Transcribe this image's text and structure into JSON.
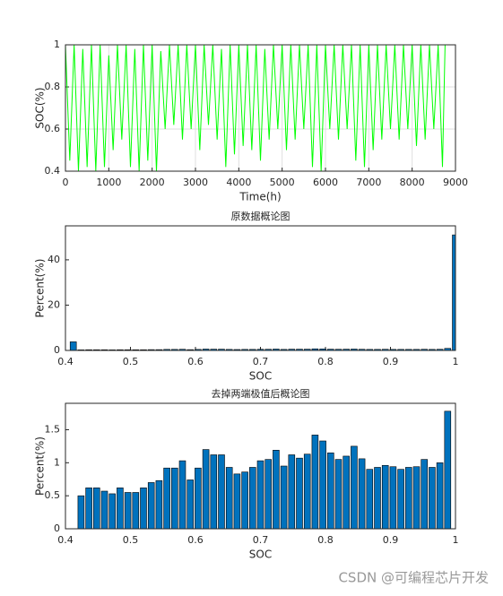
{
  "chart_data": [
    {
      "type": "line",
      "xlabel": "Time(h)",
      "ylabel": "SOC(%)",
      "x": [
        0,
        100,
        200,
        300,
        400,
        500,
        600,
        700,
        800,
        900,
        1000,
        1100,
        1200,
        1300,
        1400,
        1500,
        1600,
        1700,
        1800,
        1900,
        2000,
        2100,
        2200,
        2300,
        2400,
        2500,
        2600,
        2700,
        2800,
        2900,
        3000,
        3100,
        3200,
        3300,
        3400,
        3500,
        3600,
        3700,
        3800,
        3900,
        4000,
        4100,
        4200,
        4300,
        4400,
        4500,
        4600,
        4700,
        4800,
        4900,
        5000,
        5100,
        5200,
        5300,
        5400,
        5500,
        5600,
        5700,
        5800,
        5900,
        6000,
        6100,
        6200,
        6300,
        6400,
        6500,
        6600,
        6700,
        6800,
        6900,
        7000,
        7100,
        7200,
        7300,
        7400,
        7500,
        7600,
        7700,
        7800,
        7900,
        8000,
        8100,
        8200,
        8300,
        8400,
        8500,
        8600,
        8700,
        8760
      ],
      "values": [
        1,
        0.45,
        1,
        0.4,
        0.98,
        0.42,
        1,
        0.4,
        1,
        0.42,
        0.95,
        0.5,
        1,
        0.55,
        1,
        0.42,
        0.98,
        0.4,
        1,
        0.45,
        1,
        0.4,
        0.97,
        0.6,
        1,
        0.62,
        1,
        0.55,
        1,
        0.6,
        1,
        0.5,
        1,
        0.62,
        1,
        0.55,
        0.98,
        0.42,
        1,
        0.48,
        1,
        0.52,
        1,
        0.5,
        1,
        0.45,
        0.98,
        0.55,
        1,
        0.6,
        1,
        0.5,
        1,
        0.55,
        1,
        0.6,
        1,
        0.42,
        1,
        0.4,
        1,
        0.6,
        1,
        0.55,
        1,
        0.6,
        1,
        0.45,
        1,
        0.42,
        1,
        0.5,
        1,
        0.55,
        1,
        0.6,
        1,
        0.55,
        1,
        0.6,
        1,
        0.52,
        1,
        0.55,
        1,
        0.6,
        1,
        0.42,
        1
      ],
      "color": "#00ff00",
      "xlim": [
        0,
        9000
      ],
      "xticks": [
        0,
        1000,
        2000,
        3000,
        4000,
        5000,
        6000,
        7000,
        8000,
        9000
      ],
      "ylim": [
        0.4,
        1
      ],
      "yticks": [
        0.4,
        0.6,
        0.8,
        1
      ],
      "grid": true
    },
    {
      "type": "bar",
      "title": "原数据概论图",
      "xlabel": "SOC",
      "ylabel": "Percent(%)",
      "x": [
        0.412,
        0.424,
        0.436,
        0.448,
        0.46,
        0.472,
        0.484,
        0.496,
        0.508,
        0.52,
        0.532,
        0.544,
        0.556,
        0.568,
        0.58,
        0.592,
        0.604,
        0.616,
        0.628,
        0.64,
        0.652,
        0.664,
        0.676,
        0.688,
        0.7,
        0.712,
        0.724,
        0.736,
        0.748,
        0.76,
        0.772,
        0.784,
        0.796,
        0.808,
        0.82,
        0.832,
        0.844,
        0.856,
        0.868,
        0.88,
        0.892,
        0.904,
        0.916,
        0.928,
        0.94,
        0.952,
        0.964,
        0.976,
        0.988,
        1
      ],
      "values": [
        3.8,
        0.25,
        0.3,
        0.3,
        0.3,
        0.25,
        0.3,
        0.3,
        0.3,
        0.3,
        0.35,
        0.35,
        0.45,
        0.45,
        0.5,
        0.35,
        0.45,
        0.6,
        0.55,
        0.55,
        0.45,
        0.4,
        0.45,
        0.45,
        0.5,
        0.5,
        0.6,
        0.45,
        0.55,
        0.55,
        0.55,
        0.7,
        0.65,
        0.55,
        0.5,
        0.55,
        0.6,
        0.5,
        0.45,
        0.45,
        0.5,
        0.45,
        0.45,
        0.45,
        0.45,
        0.5,
        0.45,
        0.5,
        0.9,
        51
      ],
      "color": "#0072bd",
      "xlim": [
        0.4,
        1
      ],
      "xticks": [
        0.4,
        0.5,
        0.6,
        0.7,
        0.8,
        0.9,
        1
      ],
      "ylim": [
        0,
        55
      ],
      "yticks": [
        0,
        20,
        40
      ],
      "grid": false
    },
    {
      "type": "bar",
      "title": "去掉两端极值后概论图",
      "xlabel": "SOC",
      "ylabel": "Percent(%)",
      "x": [
        0.424,
        0.436,
        0.448,
        0.46,
        0.472,
        0.484,
        0.496,
        0.508,
        0.52,
        0.532,
        0.544,
        0.556,
        0.568,
        0.58,
        0.592,
        0.604,
        0.616,
        0.628,
        0.64,
        0.652,
        0.664,
        0.676,
        0.688,
        0.7,
        0.712,
        0.724,
        0.736,
        0.748,
        0.76,
        0.772,
        0.784,
        0.796,
        0.808,
        0.82,
        0.832,
        0.844,
        0.856,
        0.868,
        0.88,
        0.892,
        0.904,
        0.916,
        0.928,
        0.94,
        0.952,
        0.964,
        0.976,
        0.988
      ],
      "values": [
        0.5,
        0.62,
        0.62,
        0.57,
        0.53,
        0.62,
        0.55,
        0.55,
        0.62,
        0.7,
        0.73,
        0.92,
        0.92,
        1.03,
        0.74,
        0.92,
        1.2,
        1.12,
        1.12,
        0.93,
        0.83,
        0.86,
        0.93,
        1.03,
        1.05,
        1.19,
        0.95,
        1.12,
        1.07,
        1.13,
        1.42,
        1.33,
        1.15,
        1.05,
        1.1,
        1.25,
        1.06,
        0.9,
        0.93,
        0.96,
        0.94,
        0.9,
        0.93,
        0.94,
        1.05,
        0.93,
        1.0,
        1.78
      ],
      "color": "#0072bd",
      "xlim": [
        0.4,
        1
      ],
      "xticks": [
        0.4,
        0.5,
        0.6,
        0.7,
        0.8,
        0.9,
        1
      ],
      "ylim": [
        0,
        1.9
      ],
      "yticks": [
        0,
        0.5,
        1,
        1.5
      ],
      "grid": false
    }
  ],
  "watermark": "CSDN @可编程芯片开发"
}
